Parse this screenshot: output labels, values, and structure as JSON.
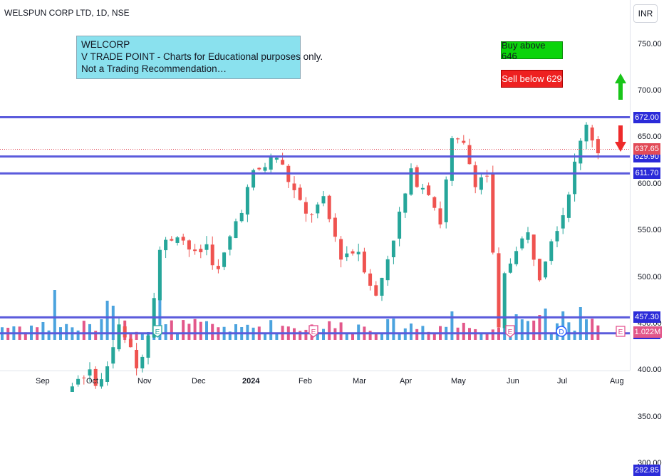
{
  "header": {
    "title": "WELSPUN CORP LTD, 1D, NSE",
    "currency_button": "INR"
  },
  "note": {
    "lines": [
      "WELCORP",
      "V TRADE POINT - Charts for Educational purposes only.",
      "Not a Trading Recommendation…"
    ]
  },
  "signals": {
    "buy_label": "Buy above 646",
    "sell_label": "Sell below 629"
  },
  "colors": {
    "level_line": "#5b5bdc",
    "up_candle": "#26a69a",
    "down_candle": "#ef5350",
    "current_price": "#e24a57",
    "volume_up": "#4ba3de",
    "volume_down": "#e2578a",
    "up_arrow": "#19c519",
    "down_arrow": "#ee2a2a"
  },
  "chart_data": {
    "type": "candlestick",
    "y_axis": {
      "ticks": [
        750,
        700,
        650,
        600,
        550,
        500,
        450,
        400,
        350,
        300
      ],
      "ylim": [
        270,
        790
      ]
    },
    "x_axis": {
      "ticks": [
        "Sep",
        "Oct",
        "Nov",
        "Dec",
        "2024",
        "Feb",
        "Mar",
        "Apr",
        "May",
        "Jun",
        "Jul",
        "Aug"
      ]
    },
    "levels": [
      672.0,
      629.9,
      611.7,
      457.3,
      440.15,
      292.85
    ],
    "current_price": 637.65,
    "current_volume": "1.022M",
    "price_path": [
      [
        0,
        335
      ],
      [
        4,
        322
      ],
      [
        8,
        340
      ],
      [
        11,
        380
      ],
      [
        14,
        398
      ],
      [
        17,
        388
      ],
      [
        20,
        445
      ],
      [
        22,
        420
      ],
      [
        23,
        402
      ],
      [
        25,
        442
      ],
      [
        27,
        530
      ],
      [
        30,
        550
      ],
      [
        33,
        522
      ],
      [
        35,
        535
      ],
      [
        37,
        505
      ],
      [
        40,
        560
      ],
      [
        43,
        610
      ],
      [
        45,
        620
      ],
      [
        47,
        630
      ],
      [
        49,
        605
      ],
      [
        52,
        565
      ],
      [
        55,
        580
      ],
      [
        58,
        525
      ],
      [
        61,
        530
      ],
      [
        64,
        478
      ],
      [
        67,
        545
      ],
      [
        70,
        610
      ],
      [
        73,
        595
      ],
      [
        75,
        560
      ],
      [
        77,
        645
      ],
      [
        79,
        640
      ],
      [
        81,
        605
      ],
      [
        83,
        610
      ],
      [
        84,
        522
      ],
      [
        85,
        440
      ],
      [
        86,
        500
      ],
      [
        88,
        535
      ],
      [
        90,
        545
      ],
      [
        92,
        505
      ],
      [
        94,
        545
      ],
      [
        96,
        570
      ],
      [
        98,
        620
      ],
      [
        100,
        668
      ],
      [
        101,
        650
      ],
      [
        102,
        638
      ]
    ],
    "earnings_markers": [
      "E",
      "E",
      "E",
      "D",
      "E"
    ]
  }
}
